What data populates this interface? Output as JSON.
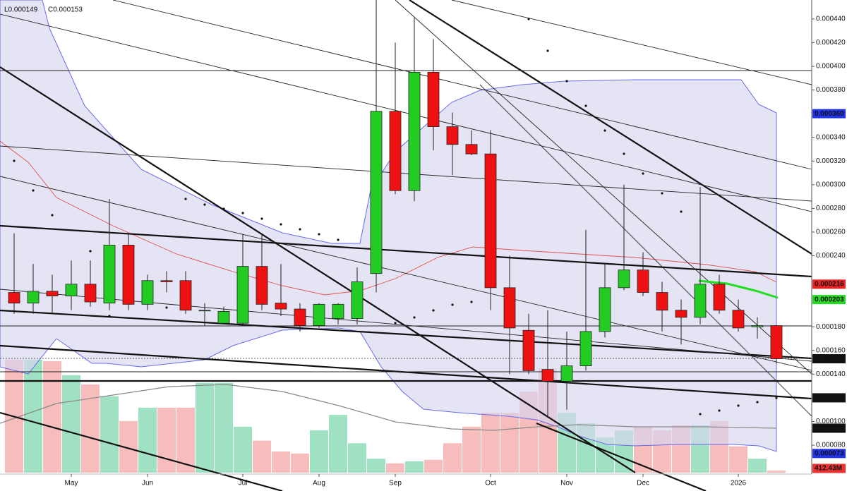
{
  "chart_data": {
    "type": "candlestick",
    "ohlc_readout": [
      "L0.000149",
      "C0.000153"
    ],
    "categories": [
      null,
      null,
      null,
      "May",
      null,
      null,
      null,
      "Jun",
      null,
      null,
      null,
      null,
      "Jul",
      null,
      null,
      null,
      "Aug",
      null,
      null,
      null,
      "Sep",
      null,
      null,
      null,
      null,
      "Oct",
      null,
      null,
      null,
      "Nov",
      null,
      null,
      null,
      "Dec",
      null,
      null,
      null,
      null,
      "2026",
      null,
      null
    ],
    "open": [
      0.000209,
      0.0002,
      0.00021,
      0.000206,
      0.000216,
      0.0002,
      0.000249,
      0.000199,
      0.000219,
      0.000219,
      0.000194,
      0.000183,
      0.000183,
      0.000231,
      0.0002,
      0.000195,
      0.000181,
      0.000187,
      0.000187,
      0.000225,
      0.000362,
      0.000295,
      0.000395,
      0.000349,
      0.000334,
      0.000326,
      0.000213,
      0.000177,
      0.000144,
      0.000134,
      0.000147,
      0.000176,
      0.000213,
      0.000228,
      0.000209,
      0.000194,
      0.000188,
      0.000216,
      0.000194,
      0.00018,
      0.000181
    ],
    "high": [
      0.000259,
      0.000233,
      0.000224,
      0.000236,
      0.000236,
      0.000288,
      0.000259,
      0.000224,
      0.000227,
      0.000227,
      0.0002,
      0.000197,
      0.000258,
      0.000259,
      0.000233,
      0.0002,
      0.0002,
      0.0002,
      0.00023,
      0.000456,
      0.00042,
      0.000441,
      0.000423,
      0.000361,
      0.000346,
      0.000346,
      0.00024,
      0.000191,
      0.000194,
      0.000176,
      0.000262,
      0.000233,
      0.0003,
      0.000243,
      0.000218,
      0.000203,
      0.000298,
      0.000224,
      0.000203,
      0.000188,
      0.000181
    ],
    "low": [
      0.000191,
      0.000191,
      0.000191,
      0.000194,
      0.000197,
      0.000194,
      0.000194,
      0.000194,
      0.000209,
      0.000191,
      0.000181,
      0.000182,
      0.000182,
      0.000194,
      0.000189,
      0.000176,
      0.000179,
      0.000182,
      0.000182,
      0.000209,
      0.000292,
      0.000286,
      0.000329,
      0.000308,
      0.000325,
      0.000194,
      0.00014,
      0.00014,
      0.000104,
      0.00011,
      0.000143,
      0.000171,
      0.000211,
      0.000206,
      0.000176,
      0.000165,
      0.000182,
      0.000191,
      0.000176,
      0.00017,
      0.000149
    ],
    "close": [
      0.0002,
      0.00021,
      0.000206,
      0.000216,
      0.000201,
      0.000249,
      0.000199,
      0.000219,
      0.000218,
      0.000194,
      0.000194,
      0.000193,
      0.000231,
      0.000199,
      0.000195,
      0.000181,
      0.000199,
      0.000199,
      0.000218,
      0.000362,
      0.000295,
      0.000395,
      0.000349,
      0.000334,
      0.000326,
      0.000213,
      0.000179,
      0.000143,
      0.000134,
      0.000147,
      0.000176,
      0.000213,
      0.000228,
      0.000209,
      0.000194,
      0.000188,
      0.000216,
      0.000194,
      0.000179,
      0.000181,
      0.000153
    ],
    "up_color": "#22cc22",
    "down_color": "#ee1111",
    "volume": {
      "values": [
        21.9,
        21.9,
        21.6,
        18.9,
        17.1,
        14.8,
        10.0,
        12.6,
        12.6,
        12.6,
        17.4,
        17.4,
        8.9,
        6.2,
        4.1,
        3.7,
        8.2,
        11.2,
        5.7,
        2.7,
        1.8,
        2.2,
        2.5,
        5.7,
        8.9,
        11.6,
        11.6,
        15.7,
        20.2,
        11.6,
        9.6,
        6.8,
        8.2,
        8.9,
        8.2,
        9.2,
        9.2,
        10.0,
        5.1,
        2.7,
        0.41243
      ],
      "ylim": [
        0,
        91.6
      ],
      "up_color": "#8fdcb8",
      "down_color": "#f6b0b0",
      "tags": [
        {
          "value": 8.617,
          "label": "8.617B",
          "color": "#111111"
        },
        {
          "value": 0.41243,
          "label": "412.43M",
          "color": "#ee3333"
        }
      ]
    },
    "ylim": [
      5.68e-05,
      0.000456
    ],
    "yticks": [
      {
        "value": 0.00044,
        "label": "0.000440"
      },
      {
        "value": 0.00042,
        "label": "0.000420"
      },
      {
        "value": 0.0004,
        "label": "0.000400"
      },
      {
        "value": 0.00038,
        "label": "0.000380"
      },
      {
        "value": 0.00034,
        "label": "0.000340"
      },
      {
        "value": 0.00032,
        "label": "0.000320"
      },
      {
        "value": 0.0003,
        "label": "0.000300"
      },
      {
        "value": 0.00028,
        "label": "0.000280"
      },
      {
        "value": 0.00026,
        "label": "0.000260"
      },
      {
        "value": 0.00024,
        "label": "0.000240"
      },
      {
        "value": 0.00018,
        "label": "0.000180"
      },
      {
        "value": 0.00016,
        "label": "0.000160"
      },
      {
        "value": 0.00014,
        "label": "0.000140"
      },
      {
        "value": 0.0001,
        "label": "0.000100"
      },
      {
        "value": 8e-05,
        "label": "0.000080"
      }
    ],
    "price_tags": [
      {
        "value": 0.00036,
        "label": "0.000360",
        "color": "#2233ee"
      },
      {
        "value": 0.000216,
        "label": "0.000216",
        "color": "#ee2222"
      },
      {
        "value": 0.000203,
        "label": "0.000203",
        "color": "#22dd22"
      },
      {
        "value": 0.000153,
        "label": "0.000153",
        "color": "#111111"
      },
      {
        "value": 0.00012,
        "label": "0.000120",
        "color": "#111111"
      },
      {
        "value": 7.3e-05,
        "label": "0.000073",
        "color": "#2233ee"
      }
    ]
  }
}
